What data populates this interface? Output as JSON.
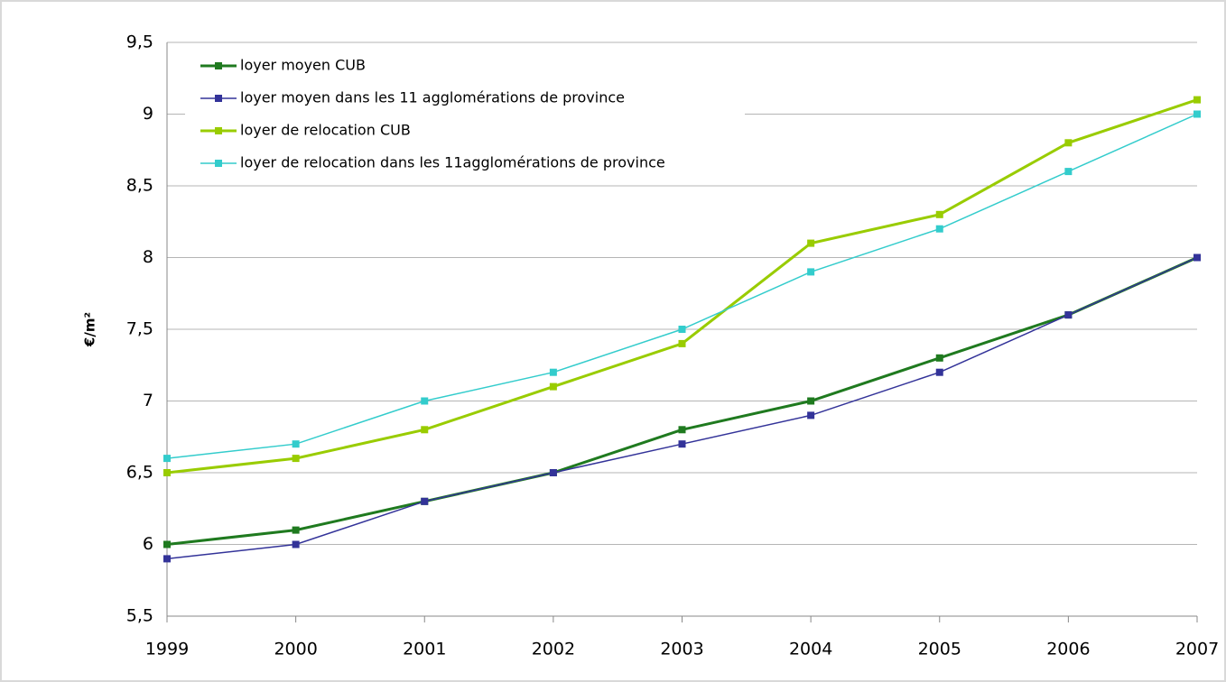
{
  "chart_data": {
    "type": "line",
    "y_label": "€/m²",
    "categories": [
      "1999",
      "2000",
      "2001",
      "2002",
      "2003",
      "2004",
      "2005",
      "2006",
      "2007"
    ],
    "series": [
      {
        "name": "loyer moyen CUB",
        "color": "#1f7a1f",
        "values": [
          6,
          6.1,
          6.3,
          6.5,
          6.8,
          7,
          7.3,
          7.6,
          8
        ]
      },
      {
        "name": "loyer moyen dans les 11 agglomérations de province",
        "color": "#333399",
        "values": [
          5.9,
          6,
          6.3,
          6.5,
          6.7,
          6.9,
          7.2,
          7.6,
          8
        ]
      },
      {
        "name": "loyer de relocation CUB",
        "color": "#99cc00",
        "values": [
          6.5,
          6.6,
          6.8,
          7.1,
          7.4,
          8.1,
          8.3,
          8.8,
          9.1
        ]
      },
      {
        "name": "loyer de relocation dans les 11agglomérations de province",
        "color": "#33cccc",
        "values": [
          6.6,
          6.7,
          7,
          7.2,
          7.5,
          7.9,
          8.2,
          8.6,
          9
        ]
      }
    ],
    "ylim": [
      5.5,
      9.5
    ],
    "yticks": [
      {
        "value": 5.5,
        "label": "5,5"
      },
      6,
      {
        "value": 6.5,
        "label": "6,5"
      },
      7,
      {
        "value": 7.5,
        "label": "7,5"
      },
      8,
      {
        "value": 8.5,
        "label": "8,5"
      },
      9,
      {
        "value": 9.5,
        "label": "9,5"
      }
    ],
    "grid": true,
    "legend": "top-left"
  }
}
